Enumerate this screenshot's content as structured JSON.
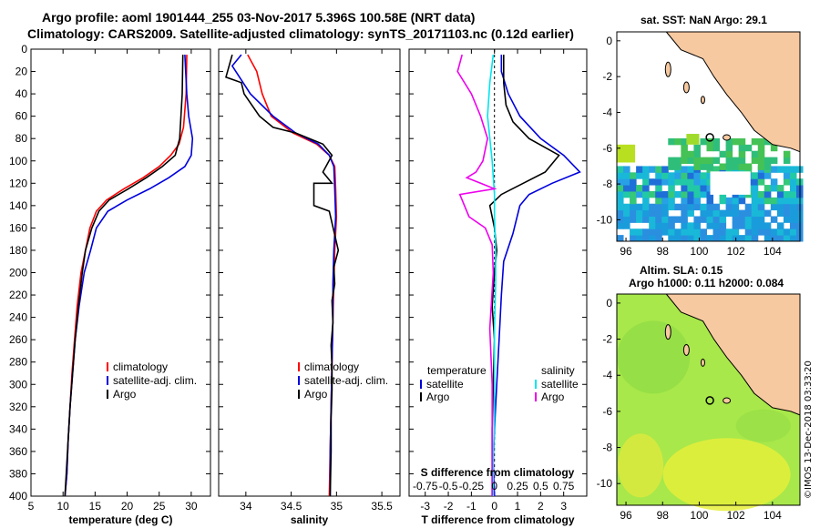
{
  "header": {
    "line1": "Argo profile: aoml 1901444_255 03-Nov-2017 5.396S 100.58E (NRT data)",
    "line2": "Climatology: CARS2009. Satellite-adjusted climatology: synTS_20171103.nc (0.12d earlier)"
  },
  "watermark": "©IMOS 13-Dec-2018 03:33:20",
  "colors": {
    "climatology": "#ff0000",
    "satellite": "#0000dd",
    "argo": "#000000",
    "sat_salinity": "#00e5ee",
    "argo_salinity": "#ee00ee",
    "land": "#f7c9a0"
  },
  "chart_data": [
    {
      "type": "line",
      "title": "",
      "xlabel": "temperature (deg C)",
      "ylabel": "",
      "xlim": [
        5,
        33
      ],
      "ylim": [
        400,
        0
      ],
      "xticks": [
        5,
        10,
        15,
        20,
        25,
        30
      ],
      "yticks": [
        0,
        20,
        40,
        60,
        80,
        100,
        120,
        140,
        160,
        180,
        200,
        220,
        240,
        260,
        280,
        300,
        320,
        340,
        360,
        380,
        400
      ],
      "legend": [
        "climatology",
        "satellite-adj. clim.",
        "Argo"
      ],
      "series": [
        {
          "name": "climatology",
          "color": "#ff0000",
          "x": [
            29.3,
            29.2,
            28.8,
            28.1,
            26.8,
            25.0,
            22.5,
            19.5,
            16.8,
            15.2,
            14.2,
            13.5,
            12.8,
            12.2,
            11.8,
            11.4,
            11.1,
            10.8,
            10.6,
            10.3
          ],
          "y": [
            5,
            40,
            70,
            85,
            95,
            105,
            115,
            125,
            135,
            145,
            160,
            180,
            200,
            230,
            260,
            290,
            320,
            350,
            380,
            400
          ]
        },
        {
          "name": "satellite-adj. clim.",
          "color": "#0000dd",
          "x": [
            29.0,
            29.3,
            29.6,
            30.2,
            30.0,
            29.0,
            26.5,
            23.5,
            20.0,
            17.0,
            15.2,
            14.3,
            13.3,
            12.5,
            11.9,
            11.5,
            11.1,
            10.8,
            10.6,
            10.3
          ],
          "y": [
            5,
            40,
            60,
            80,
            95,
            105,
            115,
            125,
            135,
            145,
            160,
            180,
            200,
            230,
            260,
            290,
            320,
            350,
            380,
            400
          ]
        },
        {
          "name": "Argo",
          "color": "#000000",
          "x": [
            28.7,
            28.6,
            28.4,
            28.2,
            27.5,
            25.5,
            23.0,
            20.2,
            17.2,
            15.6,
            14.5,
            13.5,
            13.0,
            12.4,
            11.9,
            11.5,
            11.1,
            10.8,
            10.5,
            10.3
          ],
          "y": [
            5,
            40,
            60,
            80,
            95,
            105,
            115,
            125,
            135,
            145,
            160,
            180,
            200,
            230,
            260,
            290,
            320,
            350,
            380,
            400
          ]
        }
      ]
    },
    {
      "type": "line",
      "title": "",
      "xlabel": "salinity",
      "ylabel": "",
      "xlim": [
        33.7,
        35.7
      ],
      "ylim": [
        400,
        0
      ],
      "xticks": [
        34,
        34.5,
        35,
        35.5
      ],
      "yticks": [
        0,
        20,
        40,
        60,
        80,
        100,
        120,
        140,
        160,
        180,
        200,
        220,
        240,
        260,
        280,
        300,
        320,
        340,
        360,
        380,
        400
      ],
      "legend": [
        "climatology",
        "satellite-adj. clim.",
        "Argo"
      ],
      "series": [
        {
          "name": "climatology",
          "color": "#ff0000",
          "x": [
            34.02,
            34.12,
            34.18,
            34.28,
            34.52,
            34.78,
            34.92,
            34.98,
            34.99,
            35.0,
            34.98,
            34.97,
            34.96,
            34.95,
            34.94,
            34.93,
            34.92
          ],
          "y": [
            5,
            20,
            40,
            60,
            75,
            85,
            95,
            105,
            125,
            150,
            180,
            210,
            240,
            280,
            320,
            360,
            400
          ]
        },
        {
          "name": "satellite-adj. clim.",
          "color": "#0000dd",
          "x": [
            33.95,
            33.85,
            34.05,
            34.3,
            34.55,
            34.8,
            34.92,
            34.97,
            34.98,
            34.99,
            34.97,
            34.96,
            34.96,
            34.95,
            34.94,
            34.93,
            34.93
          ],
          "y": [
            5,
            15,
            40,
            60,
            75,
            85,
            95,
            105,
            125,
            150,
            180,
            210,
            240,
            280,
            320,
            360,
            400
          ]
        },
        {
          "name": "Argo",
          "color": "#000000",
          "x": [
            33.85,
            33.78,
            33.95,
            33.98,
            34.15,
            34.3,
            34.55,
            34.85,
            34.95,
            34.85,
            34.95,
            34.75,
            34.75,
            34.92,
            35.02,
            34.97,
            34.98,
            34.95,
            34.96,
            34.94,
            34.95,
            34.95,
            34.94,
            34.94,
            34.93
          ],
          "y": [
            5,
            25,
            30,
            40,
            60,
            70,
            75,
            85,
            95,
            110,
            120,
            120,
            140,
            145,
            180,
            195,
            210,
            225,
            245,
            265,
            285,
            305,
            330,
            360,
            400
          ]
        }
      ]
    },
    {
      "type": "line",
      "title": "",
      "xlabel": "T difference from climatology",
      "ylabel": "",
      "xlim": [
        -3.7,
        4.0
      ],
      "ylim": [
        400,
        0
      ],
      "xticks": [
        -3,
        -2,
        -1,
        0,
        1,
        2,
        3
      ],
      "top_axis": {
        "label": "S difference from climatology",
        "ticks": [
          "-0.75",
          "-0.5",
          "-0.25",
          "0",
          "0.25",
          "0.5",
          "0.75"
        ],
        "tick_positions_T": [
          -3,
          -2,
          -1,
          0,
          1,
          2,
          3
        ]
      },
      "legend_headers": [
        "temperature",
        "salinity"
      ],
      "legend": [
        "satellite",
        "Argo",
        "satellite",
        "Argo"
      ],
      "series": [
        {
          "name": "temperature satellite",
          "color": "#0000dd",
          "x": [
            0.3,
            0.3,
            0.6,
            1.1,
            2.0,
            3.0,
            3.7,
            2.5,
            1.5,
            1.1,
            0.8,
            0.4,
            0.3,
            0.2,
            0.1,
            0.0,
            -0.05,
            0.0
          ],
          "y": [
            5,
            20,
            40,
            60,
            80,
            95,
            110,
            120,
            130,
            140,
            165,
            190,
            220,
            260,
            300,
            340,
            370,
            400
          ]
        },
        {
          "name": "temperature Argo",
          "color": "#000000",
          "x": [
            0.4,
            0.4,
            0.5,
            0.8,
            1.5,
            2.8,
            2.2,
            0.3,
            -0.2,
            0.0,
            0.1,
            0.0,
            -0.1,
            0.0,
            -0.05,
            -0.1,
            -0.1,
            -0.1
          ],
          "y": [
            5,
            30,
            50,
            65,
            80,
            95,
            110,
            130,
            140,
            160,
            180,
            200,
            230,
            260,
            300,
            340,
            370,
            400
          ]
        },
        {
          "name": "salinity satellite",
          "color": "#00e5ee",
          "x": [
            -0.05,
            -0.2,
            -0.3,
            -0.1,
            0.0,
            0.0,
            0.05,
            0.05,
            0.0,
            0.0,
            0.0,
            -0.05,
            -0.05
          ],
          "y": [
            5,
            30,
            60,
            100,
            130,
            150,
            180,
            210,
            250,
            290,
            330,
            370,
            400
          ]
        },
        {
          "name": "salinity Argo",
          "color": "#ee00ee",
          "x": [
            -1.4,
            -1.6,
            -1.0,
            -0.6,
            -0.3,
            -0.5,
            -0.8,
            -1.2,
            -0.6,
            0.0,
            -1.5,
            -1.1,
            -0.4,
            -0.1,
            -0.05,
            -0.2,
            -0.1,
            -0.1,
            -0.1,
            -0.1
          ],
          "y": [
            5,
            20,
            40,
            60,
            80,
            100,
            110,
            115,
            120,
            125,
            130,
            150,
            160,
            175,
            200,
            250,
            300,
            340,
            370,
            400
          ]
        }
      ]
    },
    {
      "type": "heatmap",
      "title": "sat. SST: NaN Argo: 29.1",
      "xticks": [
        96,
        98,
        100,
        102,
        104
      ],
      "yticks": [
        0,
        -2,
        -4,
        -6,
        -8,
        -10
      ],
      "xlim": [
        95.5,
        105.5
      ],
      "ylim": [
        -11.2,
        0.5
      ],
      "argo_position": [
        100.58,
        -5.396
      ]
    },
    {
      "type": "heatmap",
      "title_line1": "Altim. SLA: 0.15",
      "title_line2": "Argo h1000: 0.11 h2000: 0.084",
      "xticks": [
        96,
        98,
        100,
        102,
        104
      ],
      "yticks": [
        0,
        -2,
        -4,
        -6,
        -8,
        -10
      ],
      "xlim": [
        95.5,
        105.5
      ],
      "ylim": [
        -11.2,
        0.5
      ],
      "argo_position": [
        100.58,
        -5.396
      ]
    }
  ]
}
